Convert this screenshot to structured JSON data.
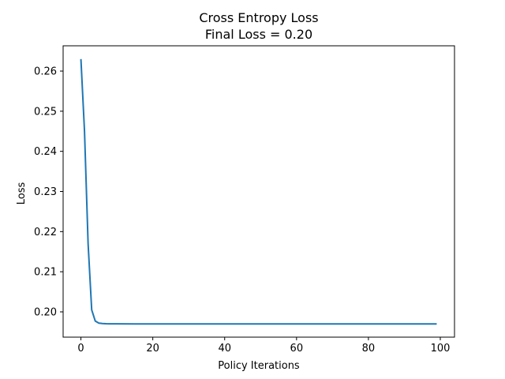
{
  "chart_data": {
    "type": "line",
    "title": "Cross Entropy Loss",
    "subtitle": "Final Loss = 0.20",
    "xlabel": "Policy Iterations",
    "ylabel": "Loss",
    "xlim": [
      -4.95,
      103.95
    ],
    "ylim": [
      0.1937,
      0.2663
    ],
    "xticks": [
      0,
      20,
      40,
      60,
      80,
      100
    ],
    "yticks": [
      0.2,
      0.21,
      0.22,
      0.23,
      0.24,
      0.25,
      0.26
    ],
    "grid": false,
    "series": [
      {
        "color": "#1f77b4",
        "x": [
          0,
          1,
          2,
          3,
          4,
          5,
          6,
          7,
          8,
          9,
          10,
          15,
          20,
          30,
          40,
          50,
          60,
          70,
          80,
          90,
          99
        ],
        "y": [
          0.263,
          0.245,
          0.217,
          0.2005,
          0.1977,
          0.1972,
          0.1971,
          0.19705,
          0.19703,
          0.19702,
          0.19701,
          0.197,
          0.197,
          0.197,
          0.197,
          0.197,
          0.197,
          0.197,
          0.197,
          0.197,
          0.197
        ]
      }
    ]
  }
}
